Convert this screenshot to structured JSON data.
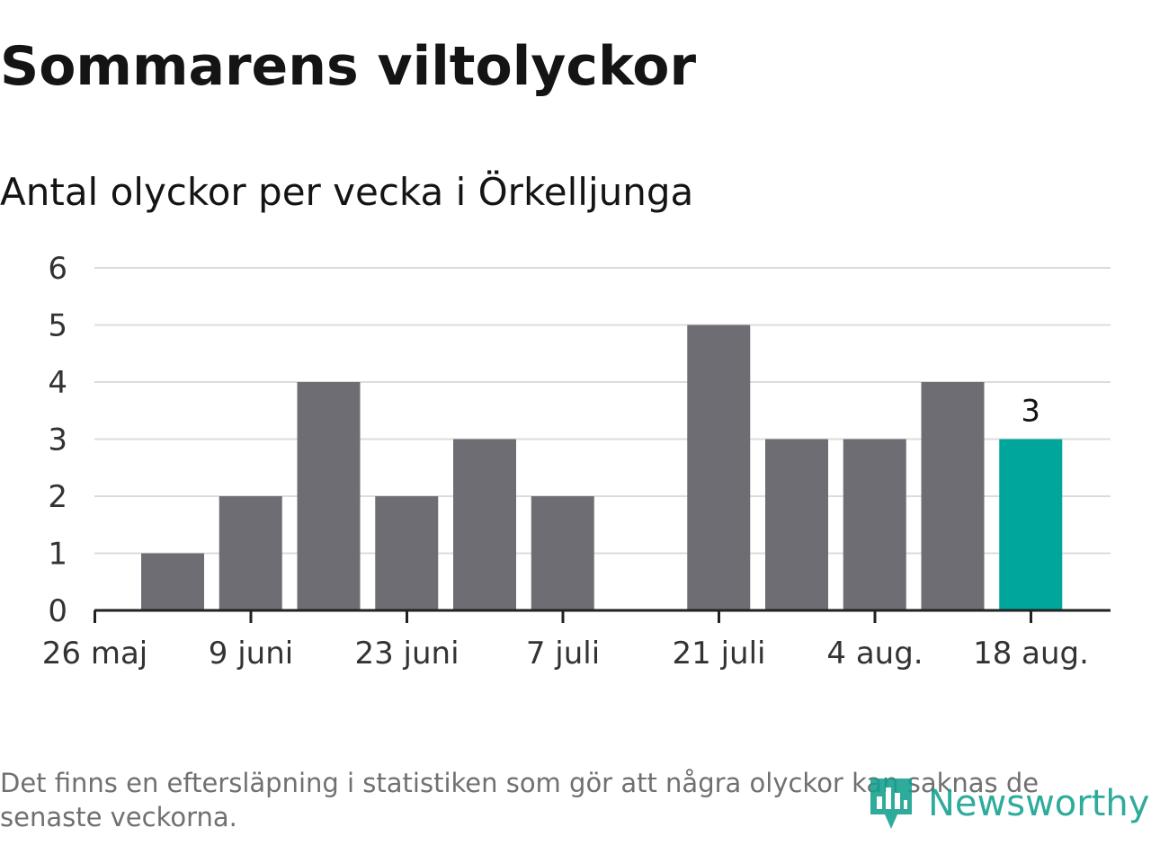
{
  "title": "Sommarens viltolyckor",
  "subtitle": "Antal olyckor per vecka i Örkelljunga",
  "footnote": "Det finns en eftersläpning i statistiken som gör att några olyckor kan saknas de senaste veckorna.",
  "logo": {
    "text": "Newsworthy",
    "icon": "newsworthy-logo-icon"
  },
  "colors": {
    "bar": "#6e6d73",
    "highlight": "#00a69a",
    "grid": "#dcdcdc",
    "axis": "#222222"
  },
  "chart_data": {
    "type": "bar",
    "title": "Sommarens viltolyckor",
    "subtitle": "Antal olyckor per vecka i Örkelljunga",
    "xlabel": "",
    "ylabel": "",
    "ylim": [
      0,
      6
    ],
    "yticks": [
      0,
      1,
      2,
      3,
      4,
      5,
      6
    ],
    "x_ticks": [
      "26 maj",
      "9 juni",
      "23 juni",
      "7 juli",
      "21 juli",
      "4 aug.",
      "18 aug."
    ],
    "weeks": [
      "2 juni",
      "9 juni",
      "16 juni",
      "23 juni",
      "30 juni",
      "7 juli",
      "14 juli",
      "21 juli",
      "28 juli",
      "4 aug.",
      "11 aug.",
      "18 aug."
    ],
    "values": [
      1,
      2,
      4,
      2,
      3,
      2,
      0,
      5,
      3,
      3,
      4,
      3
    ],
    "highlight_last": true,
    "data_labels": [
      {
        "week": "18 aug.",
        "value": 3,
        "text": "3"
      }
    ],
    "grid": true,
    "legend": "none"
  }
}
